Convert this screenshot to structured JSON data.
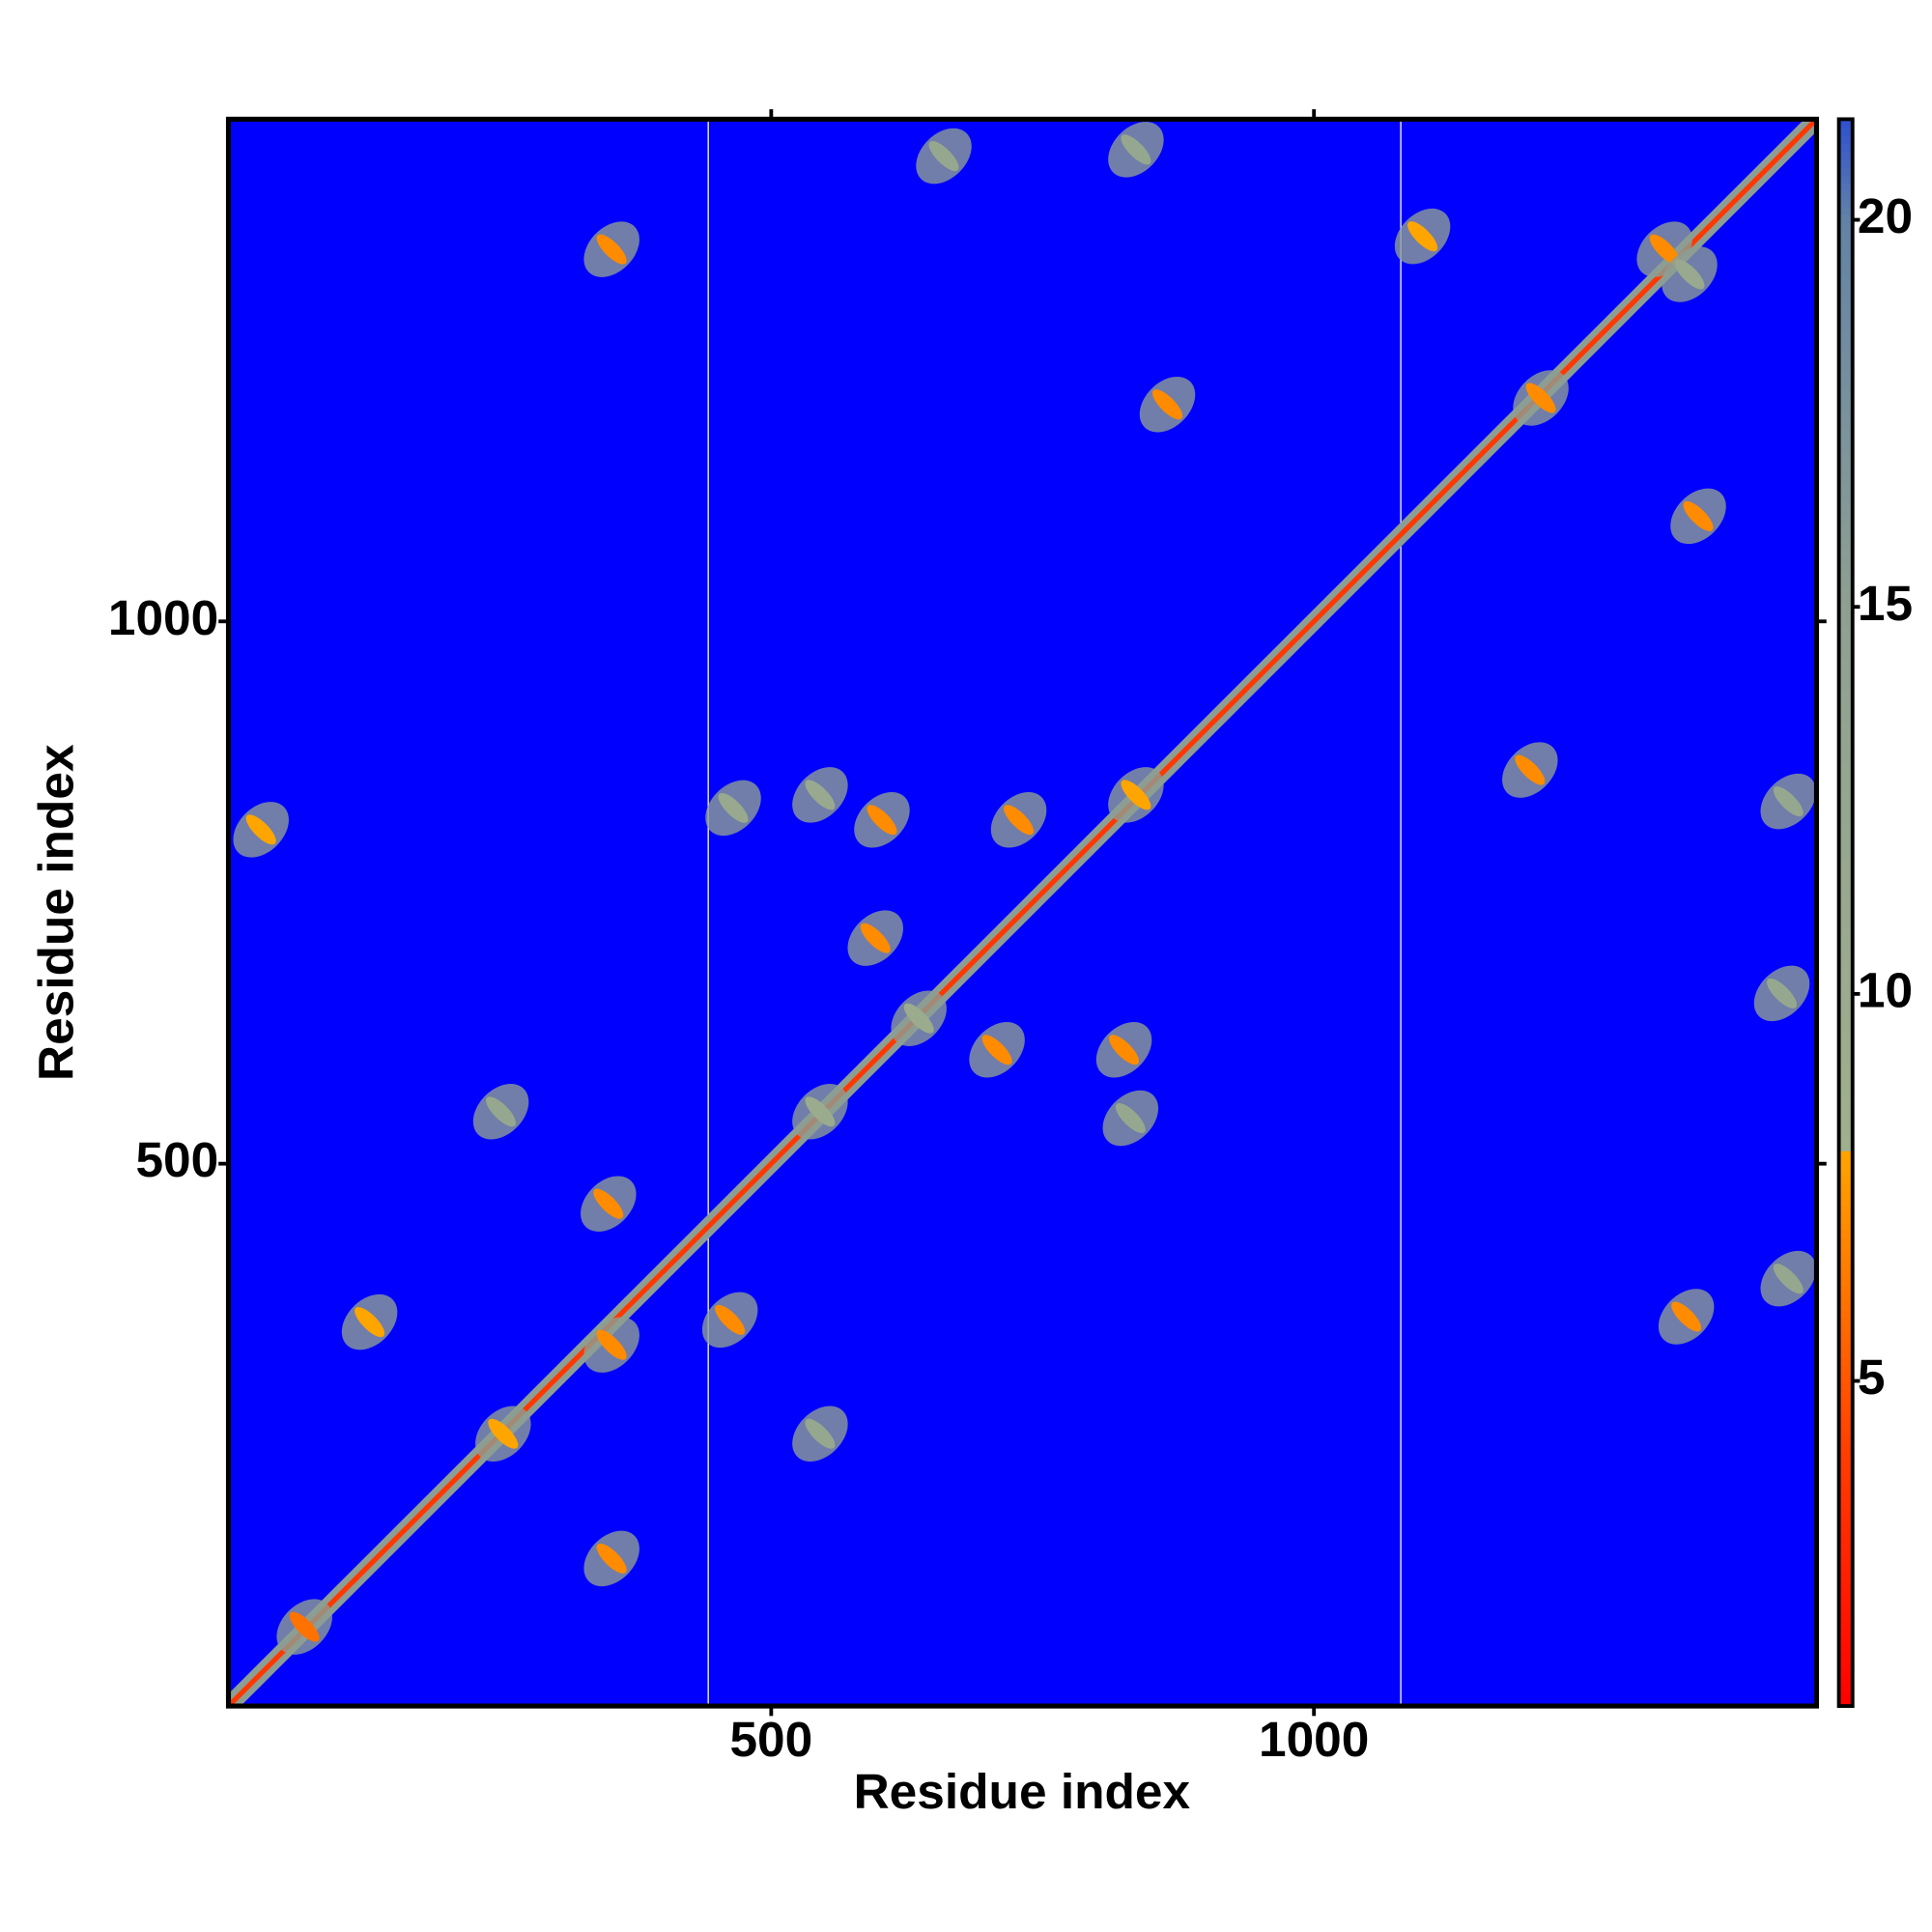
{
  "chart_data": {
    "type": "heatmap",
    "xlabel": "Residue index",
    "ylabel": "Residue index",
    "xlim": [
      0,
      1463
    ],
    "ylim": [
      0,
      1463
    ],
    "xticks": [
      500,
      1000
    ],
    "yticks": [
      500,
      1000
    ],
    "background_color": "#0000ff",
    "boundaries": [
      442,
      1080
    ],
    "diagonal_distance": 3.8,
    "clim": [
      0.8,
      21.3
    ],
    "cticks": [
      5,
      10,
      15,
      20
    ],
    "colormap": [
      {
        "value": 0.8,
        "color": "#ff0000"
      },
      {
        "value": 4,
        "color": "#ff3c00"
      },
      {
        "value": 8,
        "color": "#ffa500"
      },
      {
        "value": 8.01,
        "color": "#9fb08c"
      },
      {
        "value": 15,
        "color": "#8fa092"
      },
      {
        "value": 20,
        "color": "#6283a6"
      },
      {
        "value": 21.3,
        "color": "#2f50d0"
      }
    ],
    "contacts": [
      {
        "x": 70,
        "y": 73,
        "distance": 6
      },
      {
        "x": 130,
        "y": 354,
        "distance": 8
      },
      {
        "x": 350,
        "y": 463,
        "distance": 7
      },
      {
        "x": 353,
        "y": 333,
        "distance": 7
      },
      {
        "x": 462,
        "y": 356,
        "distance": 7
      },
      {
        "x": 545,
        "y": 548,
        "distance": 10
      },
      {
        "x": 636,
        "y": 634,
        "distance": 10
      },
      {
        "x": 708,
        "y": 605,
        "distance": 7
      },
      {
        "x": 596,
        "y": 708,
        "distance": 7
      },
      {
        "x": 545,
        "y": 840,
        "distance": 11
      },
      {
        "x": 602,
        "y": 817,
        "distance": 7
      },
      {
        "x": 836,
        "y": 840,
        "distance": 8
      },
      {
        "x": 825,
        "y": 605,
        "distance": 7
      },
      {
        "x": 831,
        "y": 542,
        "distance": 12
      },
      {
        "x": 728,
        "y": 817,
        "distance": 7
      },
      {
        "x": 1199,
        "y": 863,
        "distance": 7
      },
      {
        "x": 1209,
        "y": 1206,
        "distance": 7
      },
      {
        "x": 1323,
        "y": 1343,
        "distance": 7
      },
      {
        "x": 1346,
        "y": 1320,
        "distance": 11
      },
      {
        "x": 865,
        "y": 1200,
        "distance": 7
      },
      {
        "x": 836,
        "y": 1435,
        "distance": 12
      },
      {
        "x": 659,
        "y": 1429,
        "distance": 12
      },
      {
        "x": 353,
        "y": 1343,
        "distance": 7
      },
      {
        "x": 1437,
        "y": 834,
        "distance": 12
      },
      {
        "x": 1431,
        "y": 657,
        "distance": 12
      },
      {
        "x": 1437,
        "y": 394,
        "distance": 12
      },
      {
        "x": 251,
        "y": 548,
        "distance": 12
      },
      {
        "x": 545,
        "y": 251,
        "distance": 12
      },
      {
        "x": 353,
        "y": 136,
        "distance": 7
      },
      {
        "x": 1343,
        "y": 359,
        "distance": 7
      },
      {
        "x": 1354,
        "y": 1097,
        "distance": 7
      },
      {
        "x": 253,
        "y": 251,
        "distance": 8
      },
      {
        "x": 30,
        "y": 808,
        "distance": 8
      },
      {
        "x": 1100,
        "y": 1355,
        "distance": 8
      },
      {
        "x": 465,
        "y": 828,
        "distance": 11
      }
    ]
  }
}
